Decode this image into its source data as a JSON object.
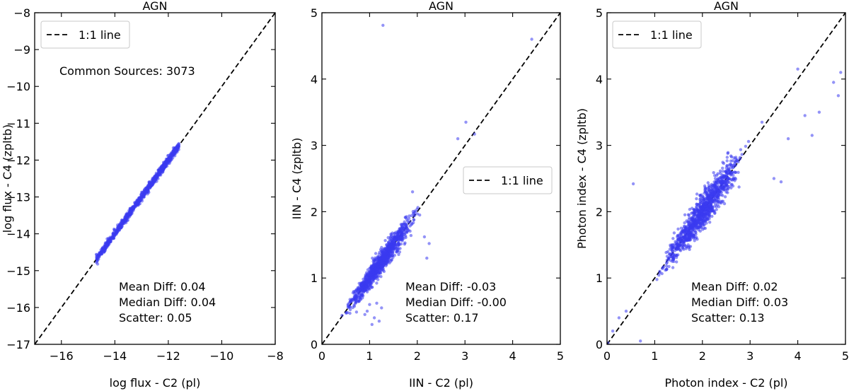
{
  "chart_data": [
    {
      "type": "scatter",
      "title": "AGN",
      "xlabel": "log flux - C2 (pl)",
      "ylabel": "log flux - C4 (zpltb)",
      "xlim": [
        -17,
        -8
      ],
      "ylim": [
        -17,
        -8
      ],
      "xticks": [
        -16,
        -14,
        -12,
        -10,
        -8
      ],
      "yticks": [
        -17,
        -16,
        -15,
        -14,
        -13,
        -12,
        -11,
        -10,
        -9,
        -8
      ],
      "legend": {
        "label": "1:1 line",
        "position": "top-left"
      },
      "reference_line": "1:1",
      "point_color": "#3a3af0",
      "annotations": {
        "common_sources": "Common Sources: 3073",
        "mean_diff": "Mean Diff: 0.04",
        "median_diff": "Median Diff: 0.04",
        "scatter": "Scatter: 0.05"
      },
      "distribution": {
        "x_min": -14.7,
        "x_max": -11.6,
        "spread": 0.05
      },
      "outliers": []
    },
    {
      "type": "scatter",
      "title": "AGN",
      "xlabel": "IIN - C2 (pl)",
      "ylabel": "IIN - C4 (zpltb)",
      "xlim": [
        0,
        5
      ],
      "ylim": [
        0,
        5
      ],
      "xticks": [
        0,
        1,
        2,
        3,
        4,
        5
      ],
      "yticks": [
        0,
        1,
        2,
        3,
        4,
        5
      ],
      "legend": {
        "label": "1:1 line",
        "position": "center-right"
      },
      "reference_line": "1:1",
      "point_color": "#3a3af0",
      "annotations": {
        "mean_diff": "Mean Diff: -0.03",
        "median_diff": "Median Diff: -0.00",
        "scatter": "Scatter: 0.17"
      },
      "distribution": {
        "x_min": 0.35,
        "x_max": 2.1,
        "spread": 0.09
      },
      "outliers": [
        [
          1.28,
          4.81
        ],
        [
          4.4,
          4.6
        ],
        [
          2.85,
          3.1
        ],
        [
          3.2,
          3.17
        ],
        [
          3.02,
          3.35
        ],
        [
          2.15,
          1.62
        ],
        [
          2.25,
          1.52
        ],
        [
          2.05,
          1.95
        ],
        [
          2.2,
          1.3
        ],
        [
          1.9,
          2.3
        ],
        [
          1.0,
          0.6
        ],
        [
          0.95,
          0.5
        ],
        [
          1.1,
          0.4
        ],
        [
          1.2,
          0.35
        ],
        [
          1.05,
          0.3
        ],
        [
          0.9,
          0.45
        ],
        [
          1.25,
          0.55
        ],
        [
          0.85,
          0.7
        ],
        [
          1.15,
          0.62
        ]
      ]
    },
    {
      "type": "scatter",
      "title": "AGN",
      "xlabel": "Photon index - C2 (pl)",
      "ylabel": "Photon index - C4 (zpltb)",
      "xlim": [
        0,
        5
      ],
      "ylim": [
        0,
        5
      ],
      "xticks": [
        0,
        1,
        2,
        3,
        4,
        5
      ],
      "yticks": [
        0,
        1,
        2,
        3,
        4,
        5
      ],
      "legend": {
        "label": "1:1 line",
        "position": "top-left"
      },
      "reference_line": "1:1",
      "point_color": "#3a3af0",
      "annotations": {
        "mean_diff": "Mean Diff: 0.02",
        "median_diff": "Median Diff: 0.03",
        "scatter": "Scatter: 0.13"
      },
      "distribution": {
        "x_min": 0.9,
        "x_max": 3.1,
        "spread": 0.14
      },
      "outliers": [
        [
          0.55,
          2.42
        ],
        [
          4.0,
          4.15
        ],
        [
          4.75,
          3.95
        ],
        [
          4.85,
          3.75
        ],
        [
          4.45,
          3.5
        ],
        [
          4.15,
          3.45
        ],
        [
          4.3,
          3.15
        ],
        [
          3.5,
          2.5
        ],
        [
          3.65,
          2.45
        ],
        [
          3.25,
          3.35
        ],
        [
          0.02,
          0.02
        ],
        [
          0.12,
          0.2
        ],
        [
          0.25,
          0.4
        ],
        [
          0.4,
          0.5
        ],
        [
          0.7,
          0.05
        ],
        [
          4.9,
          4.1
        ],
        [
          3.8,
          3.1
        ]
      ]
    }
  ]
}
